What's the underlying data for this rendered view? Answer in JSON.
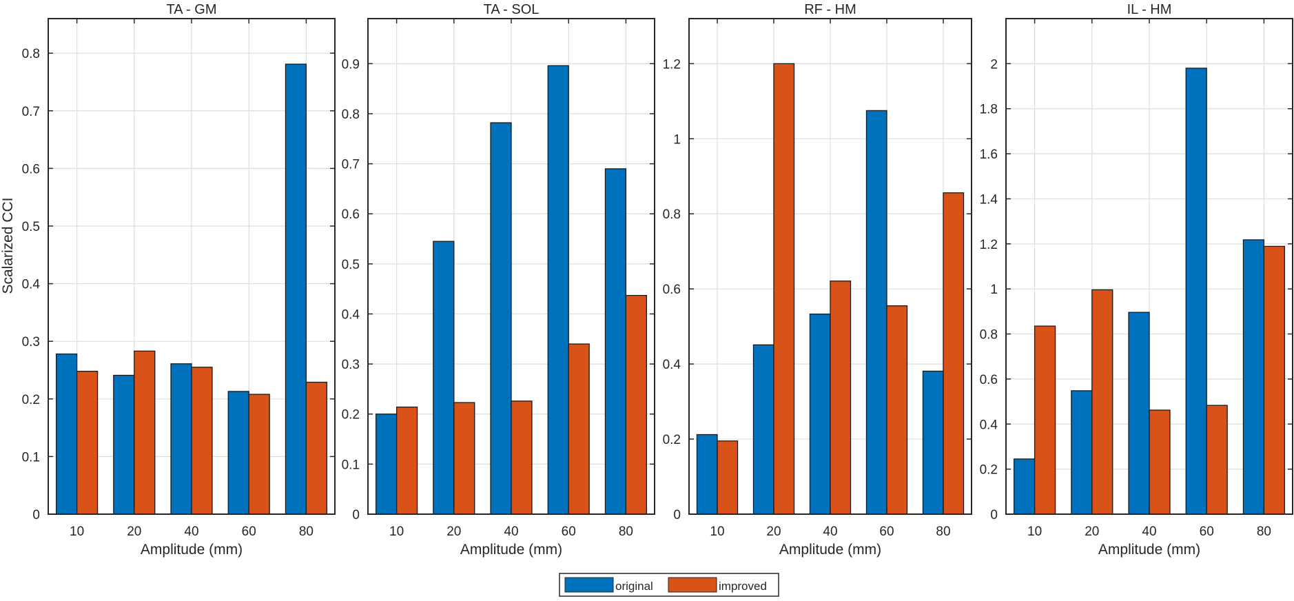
{
  "colors": {
    "original": "#0072BD",
    "improved": "#D95319",
    "grid": "#dedede",
    "axis": "#262626"
  },
  "legend": {
    "entries": [
      "original",
      "improved"
    ],
    "placement": "bottom-center"
  },
  "chart_data": [
    {
      "type": "bar",
      "title": "TA - GM",
      "xlabel": "Amplitude (mm)",
      "ylabel": "Scalarized CCI",
      "categories": [
        "10",
        "20",
        "40",
        "60",
        "80"
      ],
      "ylim": [
        0,
        0.86
      ],
      "yticks": [
        0,
        0.1,
        0.2,
        0.3,
        0.4,
        0.5,
        0.6,
        0.7,
        0.8
      ],
      "ytick_labels": [
        "0",
        "0.1",
        "0.2",
        "0.3",
        "0.4",
        "0.5",
        "0.6",
        "0.7",
        "0.8"
      ],
      "series": [
        {
          "name": "original",
          "values": [
            0.278,
            0.241,
            0.261,
            0.213,
            0.781
          ]
        },
        {
          "name": "improved",
          "values": [
            0.248,
            0.283,
            0.255,
            0.208,
            0.229
          ]
        }
      ]
    },
    {
      "type": "bar",
      "title": "TA - SOL",
      "xlabel": "Amplitude (mm)",
      "ylabel": "",
      "categories": [
        "10",
        "20",
        "40",
        "60",
        "80"
      ],
      "ylim": [
        0,
        0.99
      ],
      "yticks": [
        0,
        0.1,
        0.2,
        0.3,
        0.4,
        0.5,
        0.6,
        0.7,
        0.8,
        0.9
      ],
      "ytick_labels": [
        "0",
        "0.1",
        "0.2",
        "0.3",
        "0.4",
        "0.5",
        "0.6",
        "0.7",
        "0.8",
        "0.9"
      ],
      "series": [
        {
          "name": "original",
          "values": [
            0.2,
            0.545,
            0.782,
            0.896,
            0.69
          ]
        },
        {
          "name": "improved",
          "values": [
            0.214,
            0.223,
            0.226,
            0.34,
            0.437
          ]
        }
      ]
    },
    {
      "type": "bar",
      "title": "RF - HM",
      "xlabel": "Amplitude (mm)",
      "ylabel": "",
      "categories": [
        "10",
        "20",
        "40",
        "60",
        "80"
      ],
      "ylim": [
        0,
        1.32
      ],
      "yticks": [
        0,
        0.2,
        0.4,
        0.6,
        0.8,
        1.0,
        1.2
      ],
      "ytick_labels": [
        "0",
        "0.2",
        "0.4",
        "0.6",
        "0.8",
        "1",
        "1.2"
      ],
      "series": [
        {
          "name": "original",
          "values": [
            0.212,
            0.451,
            0.533,
            1.075,
            0.381
          ]
        },
        {
          "name": "improved",
          "values": [
            0.195,
            1.2,
            0.621,
            0.555,
            0.856
          ]
        }
      ]
    },
    {
      "type": "bar",
      "title": "IL - HM",
      "xlabel": "Amplitude (mm)",
      "ylabel": "",
      "categories": [
        "10",
        "20",
        "40",
        "60",
        "80"
      ],
      "ylim": [
        0,
        2.2
      ],
      "yticks": [
        0,
        0.2,
        0.4,
        0.6,
        0.8,
        1.0,
        1.2,
        1.4,
        1.6,
        1.8,
        2.0
      ],
      "ytick_labels": [
        "0",
        "0.2",
        "0.4",
        "0.6",
        "0.8",
        "1",
        "1.2",
        "1.4",
        "1.6",
        "1.8",
        "2"
      ],
      "series": [
        {
          "name": "original",
          "values": [
            0.245,
            0.548,
            0.896,
            1.98,
            1.218
          ]
        },
        {
          "name": "improved",
          "values": [
            0.835,
            0.996,
            0.462,
            0.483,
            1.189
          ]
        }
      ]
    }
  ]
}
